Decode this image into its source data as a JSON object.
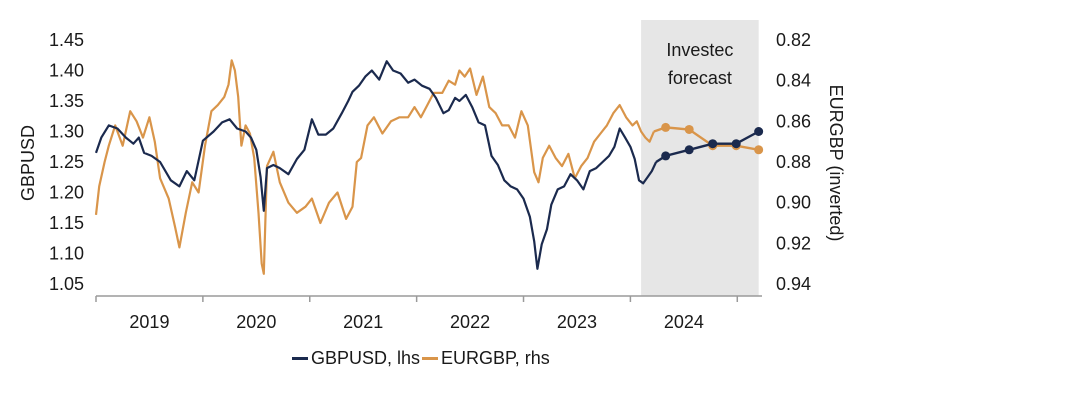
{
  "chart_data": {
    "type": "line",
    "title": "",
    "xlabel": "",
    "ylabel_left": "GBPUSD",
    "ylabel_right": "EURGBP (inverted)",
    "y_left": {
      "ticks": [
        "1.45",
        "1.40",
        "1.35",
        "1.30",
        "1.25",
        "1.20",
        "1.15",
        "1.10",
        "1.05"
      ],
      "range": [
        1.05,
        1.45
      ]
    },
    "y_right": {
      "ticks": [
        "0.82",
        "0.84",
        "0.86",
        "0.88",
        "0.90",
        "0.92",
        "0.94"
      ],
      "range": [
        0.82,
        0.94
      ],
      "inverted": true
    },
    "x_range": [
      2018.6,
      2024.85
    ],
    "x_year_ticks": [
      2018.6,
      2019.6,
      2020.6,
      2021.6,
      2022.6,
      2023.6,
      2024.6
    ],
    "categories": [
      "2019",
      "2020",
      "2021",
      "2022",
      "2023",
      "2024"
    ],
    "category_centers": [
      2019.1,
      2020.1,
      2021.1,
      2022.1,
      2023.1,
      2024.1
    ],
    "forecast_region": {
      "label_line1": "Investec",
      "label_line2": "forecast",
      "start": 2023.7,
      "end": 2024.8
    },
    "colors": {
      "gbpusd": "#1b2a4e",
      "eurgbp": "#d9954a",
      "forecast_bg": "#e6e6e6",
      "axis": "#9a9a9a"
    },
    "series": [
      {
        "name": "GBPUSD, lhs",
        "axis": "left",
        "color": "#1b2a4e",
        "points": [
          [
            2018.6,
            1.265
          ],
          [
            2018.65,
            1.29
          ],
          [
            2018.72,
            1.31
          ],
          [
            2018.8,
            1.305
          ],
          [
            2018.88,
            1.29
          ],
          [
            2018.95,
            1.28
          ],
          [
            2019.0,
            1.29
          ],
          [
            2019.05,
            1.265
          ],
          [
            2019.12,
            1.26
          ],
          [
            2019.2,
            1.25
          ],
          [
            2019.3,
            1.22
          ],
          [
            2019.38,
            1.21
          ],
          [
            2019.45,
            1.235
          ],
          [
            2019.52,
            1.22
          ],
          [
            2019.6,
            1.285
          ],
          [
            2019.7,
            1.3
          ],
          [
            2019.78,
            1.315
          ],
          [
            2019.85,
            1.32
          ],
          [
            2019.92,
            1.305
          ],
          [
            2020.0,
            1.3
          ],
          [
            2020.05,
            1.29
          ],
          [
            2020.1,
            1.27
          ],
          [
            2020.14,
            1.225
          ],
          [
            2020.17,
            1.17
          ],
          [
            2020.2,
            1.24
          ],
          [
            2020.26,
            1.245
          ],
          [
            2020.32,
            1.24
          ],
          [
            2020.4,
            1.23
          ],
          [
            2020.48,
            1.255
          ],
          [
            2020.55,
            1.27
          ],
          [
            2020.62,
            1.32
          ],
          [
            2020.68,
            1.295
          ],
          [
            2020.75,
            1.295
          ],
          [
            2020.82,
            1.305
          ],
          [
            2020.9,
            1.33
          ],
          [
            2020.96,
            1.35
          ],
          [
            2021.0,
            1.365
          ],
          [
            2021.06,
            1.375
          ],
          [
            2021.12,
            1.39
          ],
          [
            2021.18,
            1.4
          ],
          [
            2021.25,
            1.385
          ],
          [
            2021.32,
            1.415
          ],
          [
            2021.38,
            1.4
          ],
          [
            2021.45,
            1.395
          ],
          [
            2021.52,
            1.38
          ],
          [
            2021.58,
            1.385
          ],
          [
            2021.65,
            1.375
          ],
          [
            2021.72,
            1.37
          ],
          [
            2021.78,
            1.355
          ],
          [
            2021.85,
            1.33
          ],
          [
            2021.9,
            1.335
          ],
          [
            2021.96,
            1.355
          ],
          [
            2022.0,
            1.35
          ],
          [
            2022.06,
            1.36
          ],
          [
            2022.12,
            1.34
          ],
          [
            2022.18,
            1.315
          ],
          [
            2022.24,
            1.31
          ],
          [
            2022.3,
            1.26
          ],
          [
            2022.36,
            1.245
          ],
          [
            2022.42,
            1.22
          ],
          [
            2022.48,
            1.21
          ],
          [
            2022.54,
            1.205
          ],
          [
            2022.6,
            1.19
          ],
          [
            2022.66,
            1.16
          ],
          [
            2022.7,
            1.12
          ],
          [
            2022.73,
            1.075
          ],
          [
            2022.77,
            1.115
          ],
          [
            2022.82,
            1.14
          ],
          [
            2022.86,
            1.18
          ],
          [
            2022.92,
            1.205
          ],
          [
            2022.98,
            1.21
          ],
          [
            2023.04,
            1.23
          ],
          [
            2023.1,
            1.22
          ],
          [
            2023.16,
            1.205
          ],
          [
            2023.22,
            1.235
          ],
          [
            2023.28,
            1.24
          ],
          [
            2023.34,
            1.25
          ],
          [
            2023.4,
            1.26
          ],
          [
            2023.45,
            1.275
          ],
          [
            2023.5,
            1.305
          ],
          [
            2023.55,
            1.29
          ],
          [
            2023.6,
            1.275
          ],
          [
            2023.64,
            1.255
          ],
          [
            2023.68,
            1.22
          ],
          [
            2023.72,
            1.215
          ],
          [
            2023.76,
            1.225
          ],
          [
            2023.8,
            1.235
          ],
          [
            2023.84,
            1.25
          ]
        ],
        "forecast_points": [
          [
            2023.84,
            1.25
          ],
          [
            2023.93,
            1.26
          ],
          [
            2024.15,
            1.27
          ],
          [
            2024.37,
            1.28
          ],
          [
            2024.59,
            1.28
          ],
          [
            2024.8,
            1.3
          ]
        ]
      },
      {
        "name": "EURGBP, rhs",
        "axis": "right",
        "color": "#d9954a",
        "points": [
          [
            2018.6,
            0.906
          ],
          [
            2018.63,
            0.892
          ],
          [
            2018.68,
            0.88
          ],
          [
            2018.72,
            0.872
          ],
          [
            2018.78,
            0.862
          ],
          [
            2018.85,
            0.872
          ],
          [
            2018.92,
            0.855
          ],
          [
            2018.98,
            0.86
          ],
          [
            2019.04,
            0.868
          ],
          [
            2019.1,
            0.858
          ],
          [
            2019.15,
            0.87
          ],
          [
            2019.2,
            0.888
          ],
          [
            2019.28,
            0.898
          ],
          [
            2019.34,
            0.912
          ],
          [
            2019.38,
            0.922
          ],
          [
            2019.44,
            0.905
          ],
          [
            2019.5,
            0.89
          ],
          [
            2019.56,
            0.895
          ],
          [
            2019.62,
            0.872
          ],
          [
            2019.68,
            0.855
          ],
          [
            2019.74,
            0.852
          ],
          [
            2019.8,
            0.848
          ],
          [
            2019.84,
            0.842
          ],
          [
            2019.87,
            0.83
          ],
          [
            2019.9,
            0.835
          ],
          [
            2019.93,
            0.848
          ],
          [
            2019.96,
            0.872
          ],
          [
            2020.0,
            0.862
          ],
          [
            2020.04,
            0.866
          ],
          [
            2020.08,
            0.878
          ],
          [
            2020.12,
            0.905
          ],
          [
            2020.15,
            0.93
          ],
          [
            2020.17,
            0.935
          ],
          [
            2020.2,
            0.882
          ],
          [
            2020.26,
            0.875
          ],
          [
            2020.32,
            0.89
          ],
          [
            2020.4,
            0.9
          ],
          [
            2020.48,
            0.905
          ],
          [
            2020.56,
            0.902
          ],
          [
            2020.62,
            0.898
          ],
          [
            2020.7,
            0.91
          ],
          [
            2020.78,
            0.9
          ],
          [
            2020.86,
            0.895
          ],
          [
            2020.94,
            0.908
          ],
          [
            2021.0,
            0.902
          ],
          [
            2021.04,
            0.88
          ],
          [
            2021.08,
            0.878
          ],
          [
            2021.14,
            0.862
          ],
          [
            2021.2,
            0.858
          ],
          [
            2021.28,
            0.866
          ],
          [
            2021.36,
            0.86
          ],
          [
            2021.44,
            0.858
          ],
          [
            2021.52,
            0.858
          ],
          [
            2021.58,
            0.853
          ],
          [
            2021.64,
            0.858
          ],
          [
            2021.7,
            0.852
          ],
          [
            2021.76,
            0.846
          ],
          [
            2021.84,
            0.846
          ],
          [
            2021.9,
            0.84
          ],
          [
            2021.96,
            0.842
          ],
          [
            2022.0,
            0.835
          ],
          [
            2022.05,
            0.838
          ],
          [
            2022.1,
            0.834
          ],
          [
            2022.16,
            0.847
          ],
          [
            2022.22,
            0.838
          ],
          [
            2022.28,
            0.853
          ],
          [
            2022.34,
            0.856
          ],
          [
            2022.4,
            0.862
          ],
          [
            2022.46,
            0.862
          ],
          [
            2022.52,
            0.868
          ],
          [
            2022.58,
            0.855
          ],
          [
            2022.64,
            0.862
          ],
          [
            2022.7,
            0.885
          ],
          [
            2022.74,
            0.89
          ],
          [
            2022.78,
            0.878
          ],
          [
            2022.84,
            0.872
          ],
          [
            2022.9,
            0.878
          ],
          [
            2022.96,
            0.882
          ],
          [
            2023.02,
            0.876
          ],
          [
            2023.08,
            0.888
          ],
          [
            2023.14,
            0.882
          ],
          [
            2023.2,
            0.878
          ],
          [
            2023.26,
            0.87
          ],
          [
            2023.32,
            0.866
          ],
          [
            2023.38,
            0.862
          ],
          [
            2023.44,
            0.856
          ],
          [
            2023.5,
            0.852
          ],
          [
            2023.56,
            0.858
          ],
          [
            2023.62,
            0.862
          ],
          [
            2023.66,
            0.86
          ],
          [
            2023.7,
            0.865
          ],
          [
            2023.74,
            0.868
          ],
          [
            2023.78,
            0.87
          ],
          [
            2023.82,
            0.865
          ]
        ],
        "forecast_points": [
          [
            2023.82,
            0.865
          ],
          [
            2023.93,
            0.863
          ],
          [
            2024.15,
            0.864
          ],
          [
            2024.37,
            0.872
          ],
          [
            2024.59,
            0.872
          ],
          [
            2024.8,
            0.874
          ]
        ]
      }
    ]
  },
  "legend": {
    "items": [
      {
        "label": "GBPUSD, lhs",
        "color": "#1b2a4e"
      },
      {
        "label": "EURGBP, rhs",
        "color": "#d9954a"
      }
    ]
  }
}
